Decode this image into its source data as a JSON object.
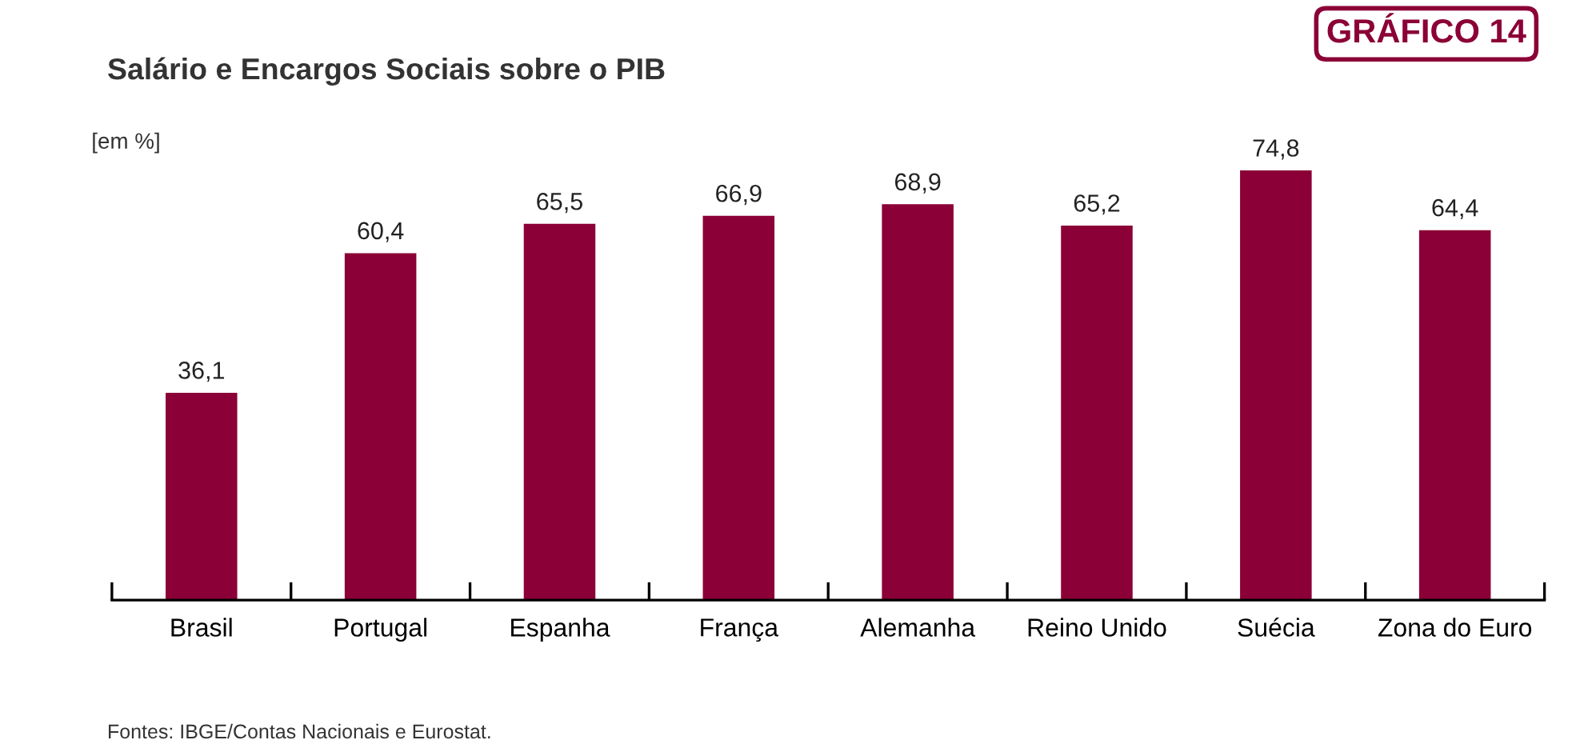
{
  "chart_data": {
    "type": "bar",
    "title": "Salário e Encargos Sociais sobre o PIB",
    "ylabel": "[em %]",
    "categories": [
      "Brasil",
      "Portugal",
      "Espanha",
      "França",
      "Alemanha",
      "Reino Unido",
      "Suécia",
      "Zona do Euro"
    ],
    "values": [
      36.1,
      60.4,
      65.5,
      66.9,
      68.9,
      65.2,
      74.8,
      64.4
    ],
    "value_labels": [
      "36,1",
      "60,4",
      "65,5",
      "66,9",
      "68,9",
      "65,2",
      "74,8",
      "64,4"
    ],
    "color": "#8b0036",
    "grid": false,
    "legend": false,
    "tick_labels": "x",
    "annotations": [
      "GRÁFICO 14",
      "Fontes: IBGE/Contas Nacionais e Eurostat."
    ]
  }
}
